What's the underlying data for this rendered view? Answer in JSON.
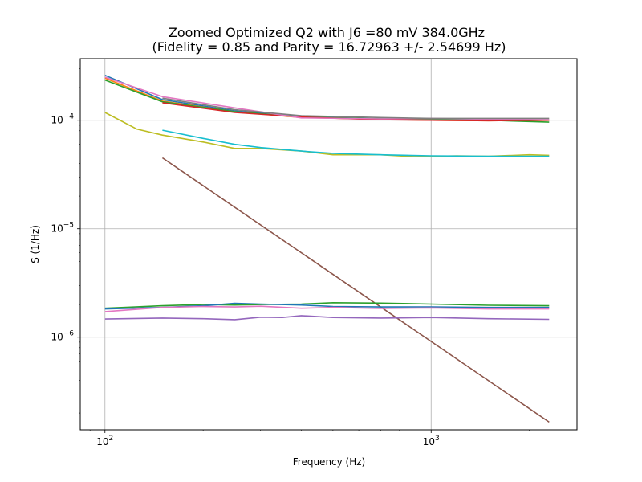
{
  "chart_data": {
    "type": "line",
    "title": "Zoomed Optimized Q2 with J6 =80 mV 384.0GHz",
    "subtitle": "(Fidelity = 0.85 and Parity = 16.72963 +/- 2.54699 Hz)",
    "xlabel": "Frequency (Hz)",
    "ylabel": "S (1/Hz)",
    "xscale": "log",
    "yscale": "log",
    "xlim": [
      84,
      2800
    ],
    "ylim": [
      1.4e-07,
      0.00037
    ],
    "grid": true,
    "xticks": [
      {
        "value": 100,
        "base": "10",
        "exp": "2"
      },
      {
        "value": 1000,
        "base": "10",
        "exp": "3"
      }
    ],
    "yticks": [
      {
        "value": 1e-06,
        "base": "10",
        "exp": "−6"
      },
      {
        "value": 1e-05,
        "base": "10",
        "exp": "−5"
      },
      {
        "value": 0.0001,
        "base": "10",
        "exp": "−4"
      }
    ],
    "series": [
      {
        "color": "#1f77b4",
        "x": [
          100,
          150,
          250,
          400,
          700,
          1000,
          1500,
          2300
        ],
        "y": [
          0.00026,
          0.000155,
          0.000122,
          0.000108,
          0.000103,
          0.000102,
          0.000101,
          0.0001
        ]
      },
      {
        "color": "#ff7f0e",
        "x": [
          100,
          150,
          250,
          400,
          700,
          1000,
          1500,
          2300
        ],
        "y": [
          0.000245,
          0.00015,
          0.00012,
          0.000106,
          0.000102,
          0.0001,
          9.9e-05,
          0.0001
        ]
      },
      {
        "color": "#2ca02c",
        "x": [
          100,
          150,
          250,
          400,
          700,
          1000,
          1500,
          2300
        ],
        "y": [
          0.000235,
          0.000148,
          0.00012,
          0.000107,
          0.000103,
          0.000101,
          0.0001,
          9.6e-05
        ]
      },
      {
        "color": "#d62728",
        "x": [
          150,
          250,
          400,
          700,
          1000,
          1500,
          2300
        ],
        "y": [
          0.000145,
          0.000118,
          0.000107,
          0.000101,
          0.0001,
          9.9e-05,
          0.0001
        ]
      },
      {
        "color": "#e377c2",
        "x": [
          100,
          150,
          250,
          400,
          700,
          1000,
          1500,
          2300
        ],
        "y": [
          0.00025,
          0.000165,
          0.00013,
          0.000105,
          0.000103,
          0.000104,
          0.000102,
          0.000101
        ]
      },
      {
        "color": "#7f7f7f",
        "x": [
          150,
          250,
          400,
          700,
          1000,
          1500,
          2300
        ],
        "y": [
          0.00016,
          0.000125,
          0.00011,
          0.000106,
          0.000104,
          0.000104,
          0.000104
        ]
      },
      {
        "color": "#bcbd22",
        "x": [
          100,
          125,
          150,
          200,
          250,
          300,
          400,
          500,
          700,
          900,
          1200,
          1500,
          2000,
          2300
        ],
        "y": [
          0.000118,
          8.3e-05,
          7.3e-05,
          6.3e-05,
          5.5e-05,
          5.5e-05,
          5.2e-05,
          4.8e-05,
          4.8e-05,
          4.6e-05,
          4.7e-05,
          4.65e-05,
          4.8e-05,
          4.75e-05
        ]
      },
      {
        "color": "#17becf",
        "x": [
          150,
          200,
          250,
          300,
          400,
          500,
          700,
          1000,
          1500,
          2300
        ],
        "y": [
          8.1e-05,
          6.8e-05,
          6e-05,
          5.6e-05,
          5.2e-05,
          4.95e-05,
          4.8e-05,
          4.7e-05,
          4.65e-05,
          4.65e-05
        ]
      },
      {
        "color": "#8c564b",
        "x": [
          150,
          2300
        ],
        "y": [
          4.5e-05,
          1.65e-07
        ]
      },
      {
        "color": "#2ca02c",
        "x": [
          100,
          150,
          200,
          250,
          300,
          400,
          500,
          700,
          1000,
          1500,
          2300
        ],
        "y": [
          1.85e-06,
          1.95e-06,
          2e-06,
          1.98e-06,
          2e-06,
          2.02e-06,
          2.08e-06,
          2.06e-06,
          2.02e-06,
          1.97e-06,
          1.95e-06
        ]
      },
      {
        "color": "#1f77b4",
        "x": [
          100,
          150,
          200,
          250,
          300,
          400,
          500,
          700,
          1000,
          1500,
          2300
        ],
        "y": [
          1.82e-06,
          1.88e-06,
          1.95e-06,
          2.05e-06,
          2.02e-06,
          1.98e-06,
          1.92e-06,
          1.9e-06,
          1.9e-06,
          1.88e-06,
          1.88e-06
        ]
      },
      {
        "color": "#e377c2",
        "x": [
          100,
          150,
          200,
          250,
          300,
          400,
          500,
          700,
          1000,
          1500,
          2300
        ],
        "y": [
          1.72e-06,
          1.88e-06,
          1.92e-06,
          1.9e-06,
          1.93e-06,
          1.85e-06,
          1.88e-06,
          1.84e-06,
          1.86e-06,
          1.82e-06,
          1.82e-06
        ]
      },
      {
        "color": "#9467bd",
        "x": [
          100,
          150,
          200,
          250,
          300,
          350,
          400,
          500,
          700,
          1000,
          1500,
          2300
        ],
        "y": [
          1.47e-06,
          1.5e-06,
          1.48e-06,
          1.45e-06,
          1.53e-06,
          1.52e-06,
          1.58e-06,
          1.52e-06,
          1.5e-06,
          1.52e-06,
          1.48e-06,
          1.46e-06
        ]
      }
    ]
  }
}
